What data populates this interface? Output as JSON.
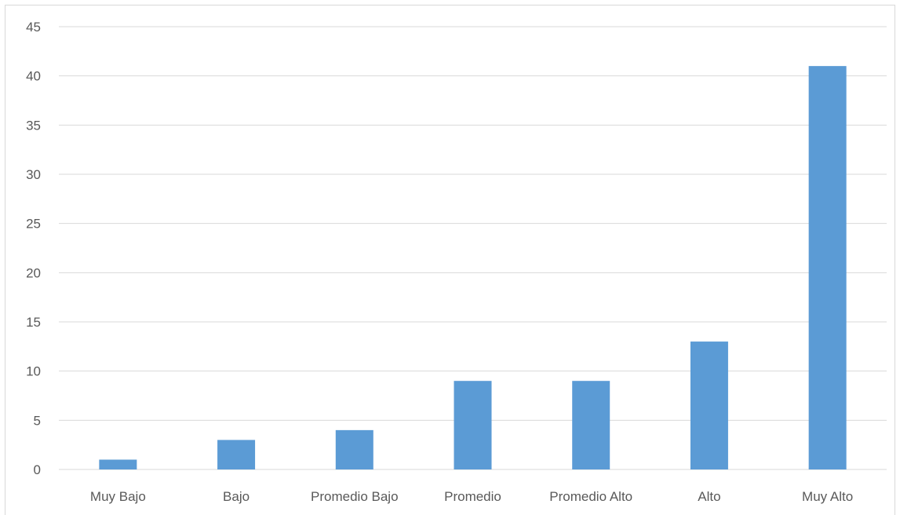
{
  "chart_data": {
    "type": "bar",
    "title": "",
    "xlabel": "",
    "ylabel": "",
    "categories": [
      "Muy Bajo",
      "Bajo",
      "Promedio Bajo",
      "Promedio",
      "Promedio Alto",
      "Alto",
      "Muy Alto"
    ],
    "values": [
      1,
      3,
      4,
      9,
      9,
      13,
      41
    ],
    "ylim": [
      0,
      45
    ],
    "yticks": [
      0,
      5,
      10,
      15,
      20,
      25,
      30,
      35,
      40,
      45
    ],
    "grid": true,
    "legend": "none",
    "bar_color": "#5b9bd5"
  }
}
